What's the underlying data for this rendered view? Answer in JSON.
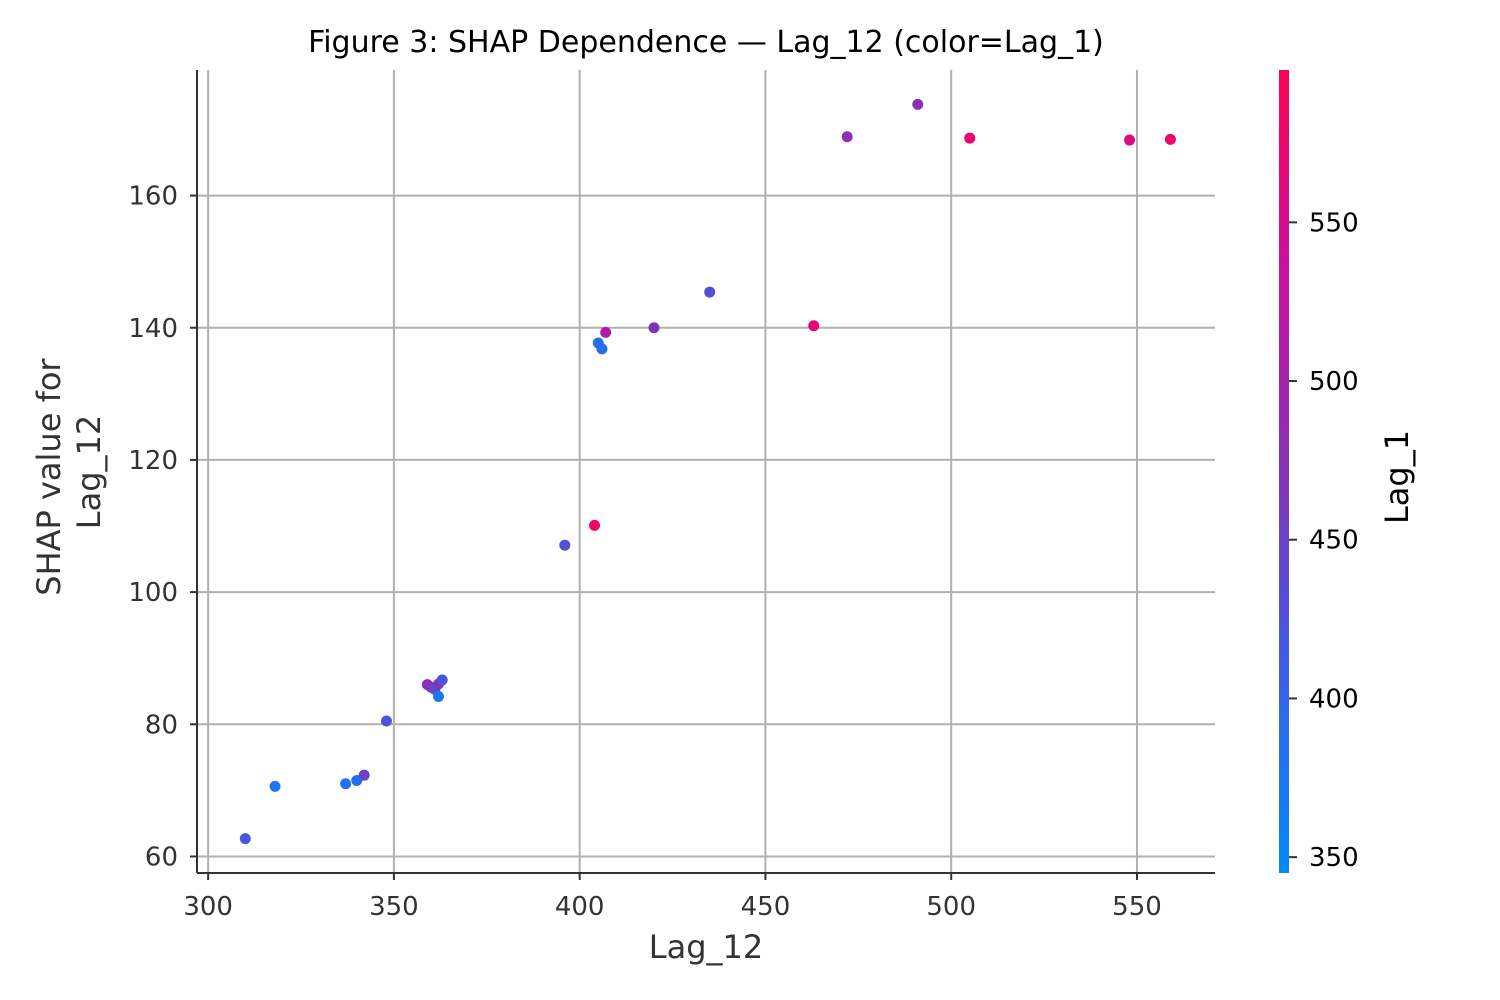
{
  "chart_data": {
    "type": "scatter",
    "title": "Figure 3: SHAP Dependence — Lag_12 (color=Lag_1)",
    "xlabel": "Lag_12",
    "ylabel": [
      "SHAP value for",
      "Lag_12"
    ],
    "xlim": [
      297,
      571
    ],
    "ylim": [
      57.5,
      179
    ],
    "xticks": [
      300,
      350,
      400,
      450,
      500,
      550
    ],
    "yticks": [
      60,
      80,
      100,
      120,
      140,
      160
    ],
    "grid": true,
    "colorbar": {
      "label": "Lag_1",
      "range": [
        345,
        598
      ],
      "ticks": [
        350,
        400,
        450,
        500,
        550
      ],
      "colors": [
        "#008afb",
        "#3a5fe8",
        "#8533b5",
        "#c80f9e",
        "#ff0052"
      ]
    },
    "points": [
      {
        "x": 310,
        "y": 62.7,
        "c": 420
      },
      {
        "x": 318,
        "y": 70.6,
        "c": 375
      },
      {
        "x": 337,
        "y": 71.0,
        "c": 380
      },
      {
        "x": 340,
        "y": 71.5,
        "c": 385
      },
      {
        "x": 342,
        "y": 72.3,
        "c": 450
      },
      {
        "x": 348,
        "y": 80.5,
        "c": 425
      },
      {
        "x": 359,
        "y": 86.0,
        "c": 478
      },
      {
        "x": 360,
        "y": 85.6,
        "c": 470
      },
      {
        "x": 361,
        "y": 85.3,
        "c": 440
      },
      {
        "x": 362,
        "y": 84.2,
        "c": 370
      },
      {
        "x": 362,
        "y": 86.1,
        "c": 468
      },
      {
        "x": 363,
        "y": 86.7,
        "c": 425
      },
      {
        "x": 396,
        "y": 107.1,
        "c": 430
      },
      {
        "x": 404,
        "y": 110.1,
        "c": 580
      },
      {
        "x": 405,
        "y": 137.7,
        "c": 385
      },
      {
        "x": 406,
        "y": 136.8,
        "c": 385
      },
      {
        "x": 407,
        "y": 139.3,
        "c": 510
      },
      {
        "x": 420,
        "y": 140.0,
        "c": 470
      },
      {
        "x": 435,
        "y": 145.4,
        "c": 430
      },
      {
        "x": 463,
        "y": 140.3,
        "c": 570
      },
      {
        "x": 472,
        "y": 168.9,
        "c": 478
      },
      {
        "x": 491,
        "y": 173.8,
        "c": 475
      },
      {
        "x": 505,
        "y": 168.7,
        "c": 572
      },
      {
        "x": 548,
        "y": 168.4,
        "c": 560
      },
      {
        "x": 559,
        "y": 168.5,
        "c": 580
      }
    ]
  }
}
